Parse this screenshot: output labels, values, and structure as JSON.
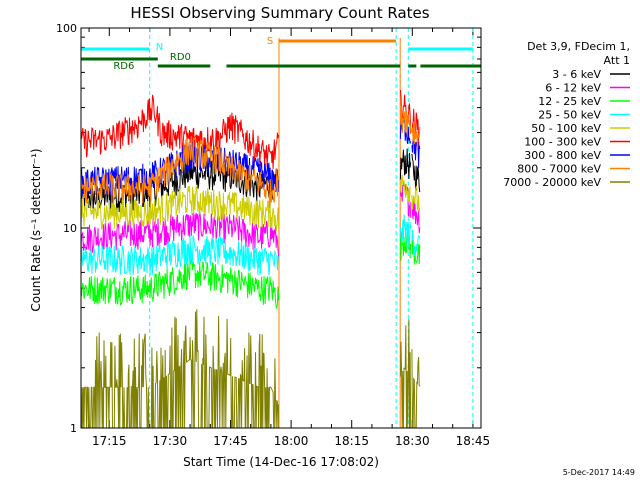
{
  "chart_data": {
    "type": "line",
    "title": "HESSI Observing Summary Count Rates",
    "xlabel": "Start Time (14-Dec-16 17:08:02)",
    "ylabel": "Count Rate (s⁻¹ detector⁻¹)",
    "yscale": "log",
    "ylim": [
      1,
      100
    ],
    "xlim_minutes": [
      8,
      107
    ],
    "x_ticks": [
      {
        "label": "17:15",
        "minute": 15
      },
      {
        "label": "17:30",
        "minute": 30
      },
      {
        "label": "17:45",
        "minute": 45
      },
      {
        "label": "18:00",
        "minute": 60
      },
      {
        "label": "18:15",
        "minute": 75
      },
      {
        "label": "18:30",
        "minute": 90
      },
      {
        "label": "18:45",
        "minute": 105
      }
    ],
    "y_ticks": [
      {
        "label": "1",
        "value": 1
      },
      {
        "label": "10",
        "value": 10
      },
      {
        "label": "100",
        "value": 100
      }
    ],
    "legend": {
      "position": "right",
      "header": [
        "Det 3,9, FDecim 1,",
        "Att 1"
      ]
    },
    "series": [
      {
        "name": "3 - 6 keV",
        "color": "#000000",
        "x": [
          8,
          25,
          35,
          46,
          52,
          55,
          57,
          87,
          88,
          90,
          92
        ],
        "y": [
          14,
          15,
          19,
          18,
          16,
          17,
          15,
          20,
          22,
          20,
          17
        ]
      },
      {
        "name": "6 - 12 keV",
        "color": "#ff00ff",
        "x": [
          8,
          25,
          35,
          46,
          52,
          55,
          57,
          87,
          88,
          90,
          92
        ],
        "y": [
          9,
          9.5,
          10.5,
          10,
          9,
          9.5,
          8.5,
          13,
          15,
          13,
          11
        ]
      },
      {
        "name": "12 - 25 keV",
        "color": "#00ff00",
        "x": [
          8,
          25,
          35,
          46,
          52,
          55,
          57,
          87,
          88,
          90,
          92
        ],
        "y": [
          5,
          5,
          6,
          5.5,
          5,
          5,
          4.5,
          8,
          9,
          8,
          7
        ]
      },
      {
        "name": "25 - 50 keV",
        "color": "#00ffff",
        "x": [
          8,
          25,
          35,
          46,
          52,
          55,
          57,
          87,
          88,
          90,
          92
        ],
        "y": [
          7,
          7,
          8,
          7.5,
          7,
          7,
          6.5,
          9,
          10,
          9,
          8
        ]
      },
      {
        "name": "50 - 100 keV",
        "color": "#cccc00",
        "x": [
          8,
          25,
          35,
          46,
          52,
          55,
          57,
          87,
          88,
          90,
          92
        ],
        "y": [
          12,
          12,
          14,
          13,
          12,
          12,
          11,
          16,
          17,
          15,
          13
        ]
      },
      {
        "name": "100 - 300 keV",
        "color": "#ff0000",
        "x": [
          8,
          15,
          22,
          26,
          28,
          35,
          42,
          45,
          50,
          55,
          57,
          87,
          88,
          90,
          92
        ],
        "y": [
          27,
          28,
          33,
          40,
          30,
          28,
          28,
          33,
          27,
          22,
          27,
          42,
          40,
          35,
          30
        ]
      },
      {
        "name": "300 - 800 keV",
        "color": "#0000ff",
        "x": [
          8,
          25,
          35,
          46,
          52,
          55,
          57,
          87,
          88,
          90,
          92
        ],
        "y": [
          17,
          18,
          23,
          21,
          19,
          18,
          17,
          30,
          33,
          28,
          22
        ]
      },
      {
        "name": "800 - 7000 keV",
        "color": "#ff8000",
        "x": [
          8,
          25,
          30,
          35,
          42,
          46,
          52,
          55,
          57,
          87,
          88,
          90,
          92
        ],
        "y": [
          16,
          16,
          20,
          25,
          22,
          19,
          17,
          15,
          18,
          35,
          37,
          32,
          28
        ]
      },
      {
        "name": "7000 - 20000 keV",
        "color": "#808000",
        "x": [
          8,
          25,
          35,
          46,
          52,
          55,
          57,
          87,
          88,
          90,
          92
        ],
        "y": [
          1.6,
          1.6,
          2.2,
          1.8,
          1.6,
          1.6,
          1.3,
          1.8,
          2,
          1.8,
          1.6
        ]
      }
    ],
    "annotations": {
      "night_label": "N",
      "rd06_label": "RD6",
      "rd0_label": "RD0",
      "saa_label": "S",
      "night_color": "#00ffff",
      "rd_color": "#006400",
      "saa_color": "#ff8000",
      "night_bars": [
        [
          8,
          25
        ],
        [
          89,
          105
        ]
      ],
      "rd06_bars": [
        [
          8,
          27
        ]
      ],
      "rd0_bars": [
        [
          27,
          40
        ],
        [
          44,
          87
        ],
        [
          89,
          91
        ],
        [
          92,
          107
        ]
      ],
      "saa_bars": [
        [
          57,
          86
        ]
      ],
      "dashed_lines_minutes": [
        25,
        86,
        89,
        105
      ],
      "saa_lines_minutes": [
        57,
        87
      ]
    },
    "grid": false
  },
  "footer": {
    "date": "5-Dec-2017 14:49"
  }
}
